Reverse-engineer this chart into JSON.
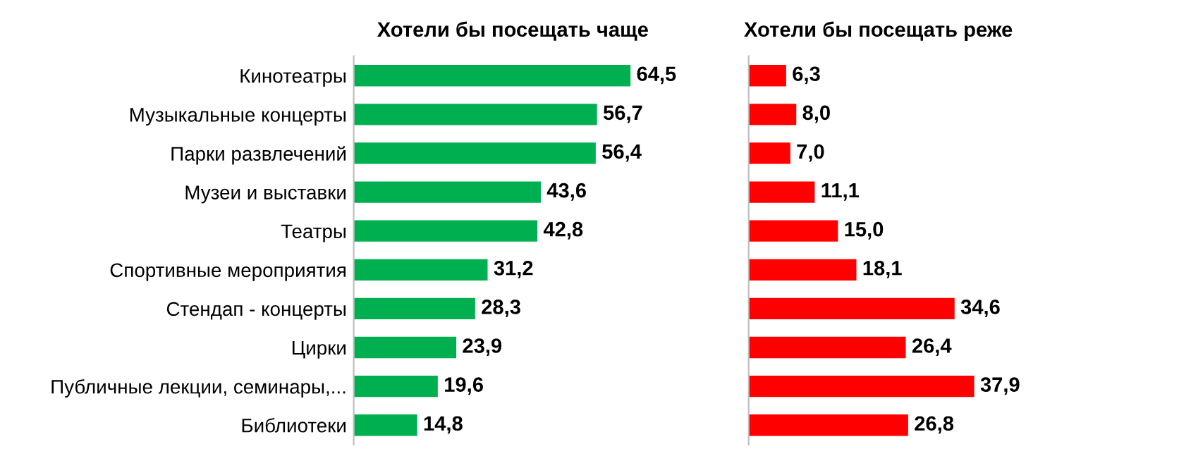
{
  "chart_data": [
    {
      "type": "bar",
      "orientation": "horizontal",
      "title": "Хотели бы посещать чаще",
      "categories": [
        "Кинотеатры",
        "Музыкальные концерты",
        "Парки развлечений",
        "Музеи и выставки",
        "Театры",
        "Спортивные мероприятия",
        "Стендап - концерты",
        "Цирки",
        "Публичные лекции, семинары,...",
        "Библиотеки"
      ],
      "values": [
        64.5,
        56.7,
        56.4,
        43.6,
        42.8,
        31.2,
        28.3,
        23.9,
        19.6,
        14.8
      ],
      "value_labels": [
        "64,5",
        "56,7",
        "56,4",
        "43,6",
        "42,8",
        "31,2",
        "28,3",
        "23,9",
        "19,6",
        "14,8"
      ],
      "color": "#00b050",
      "tick_labels": "y"
    },
    {
      "type": "bar",
      "orientation": "horizontal",
      "title": "Хотели бы посещать реже",
      "values": [
        6.3,
        8.0,
        7.0,
        11.1,
        15.0,
        18.1,
        34.6,
        26.4,
        37.9,
        26.8
      ],
      "value_labels": [
        "6,3",
        "8,0",
        "7,0",
        "11,1",
        "15,0",
        "18,1",
        "34,6",
        "26,4",
        "37,9",
        "26,8"
      ],
      "color": "#ff0000",
      "tick_labels": false
    }
  ]
}
